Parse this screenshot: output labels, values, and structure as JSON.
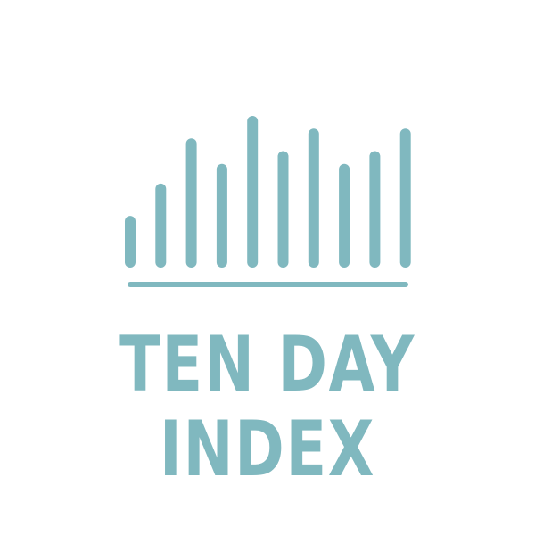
{
  "brand": {
    "line1": "TEN DAY",
    "line2": "INDEX",
    "color": "#80b8bf"
  },
  "icon": {
    "name": "bar-chart-icon",
    "relative_levels": [
      0.29,
      0.52,
      0.84,
      0.66,
      1.0,
      0.75,
      0.91,
      0.66,
      0.75,
      0.91
    ]
  }
}
